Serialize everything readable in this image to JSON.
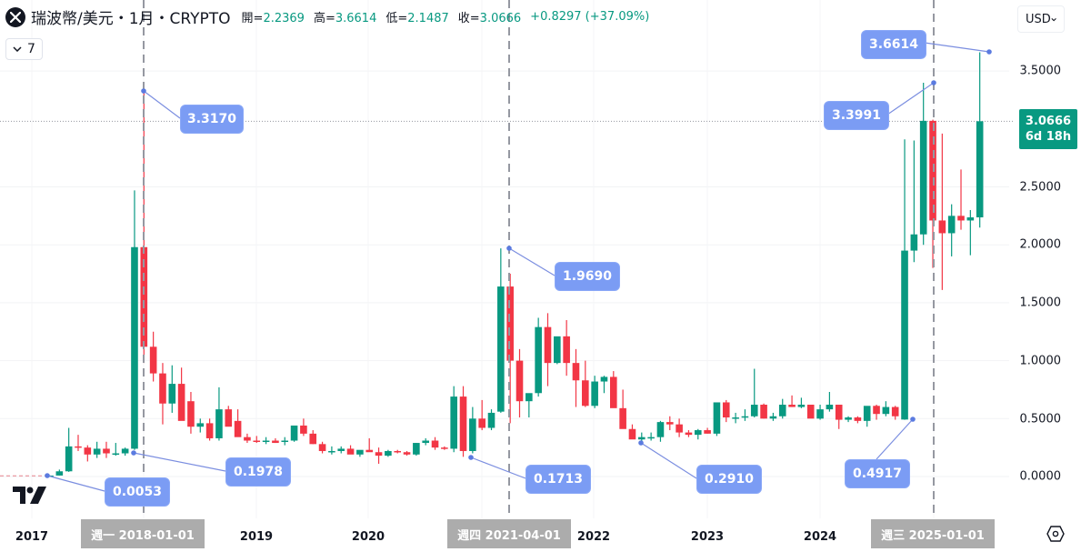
{
  "header": {
    "symbol_icon": "xrp-x-icon",
    "title": "瑞波幣/美元・1月・CRYPTO",
    "ohlc": [
      {
        "label": "開=",
        "value": "2.2369"
      },
      {
        "label": "高=",
        "value": "3.6614"
      },
      {
        "label": "低=",
        "value": "2.1487"
      },
      {
        "label": "收=",
        "value": "3.0666"
      },
      {
        "label": "",
        "value": "+0.8297 (+37.09%)"
      }
    ],
    "collapse_count": "7",
    "collapse_icon": "chevron-down-icon"
  },
  "currency": {
    "label": "USD",
    "icon": "chevron-down-icon"
  },
  "price_tag": {
    "price": "3.0666",
    "countdown": "6d 18h"
  },
  "colors": {
    "up": "#089981",
    "down": "#f23645",
    "callout": "#7b9cf4",
    "crosshair": "#9598a1"
  },
  "settings_icon": "settings-hexagon-icon",
  "chart_data": {
    "type": "candlestick",
    "title": "瑞波幣/美元・1月・CRYPTO",
    "interval": "1M",
    "ylabel": "USD",
    "ylim": [
      -0.1,
      3.6614
    ],
    "y_ticks": [
      "3.5000",
      "3.0000",
      "2.5000",
      "2.0000",
      "1.5000",
      "1.0000",
      "0.5000",
      "0.0000"
    ],
    "x_ticks": [
      "2017",
      "2018",
      "2019",
      "2020",
      "2021",
      "2022",
      "2023",
      "2024",
      "2025"
    ],
    "x_tags": [
      "週一 2018-01-01",
      "週四 2021-04-01",
      "週三 2025-01-01"
    ],
    "last": {
      "open": 2.2369,
      "high": 3.6614,
      "low": 2.1487,
      "close": 3.0666,
      "change": 0.8297,
      "change_pct": 37.09
    },
    "annotations": [
      {
        "label": "0.0053",
        "type": "low"
      },
      {
        "label": "3.3170",
        "type": "high"
      },
      {
        "label": "0.1978",
        "type": "low"
      },
      {
        "label": "1.9690",
        "type": "high"
      },
      {
        "label": "0.1713",
        "type": "low"
      },
      {
        "label": "0.2910",
        "type": "low"
      },
      {
        "label": "3.3991",
        "type": "high"
      },
      {
        "label": "0.4917",
        "type": "low"
      },
      {
        "label": "3.6614",
        "type": "high"
      }
    ],
    "candles": [
      [
        0.0063,
        0.009,
        0.0053,
        0.0085
      ],
      [
        0.0085,
        0.06,
        0.008,
        0.045
      ],
      [
        0.045,
        0.42,
        0.04,
        0.26
      ],
      [
        0.26,
        0.36,
        0.22,
        0.25
      ],
      [
        0.25,
        0.27,
        0.13,
        0.19
      ],
      [
        0.19,
        0.3,
        0.16,
        0.24
      ],
      [
        0.24,
        0.3,
        0.16,
        0.2
      ],
      [
        0.2,
        0.29,
        0.18,
        0.2
      ],
      [
        0.2,
        0.25,
        0.18,
        0.24
      ],
      [
        0.24,
        2.47,
        0.23,
        1.98
      ],
      [
        1.98,
        3.317,
        0.98,
        1.12
      ],
      [
        1.12,
        1.25,
        0.82,
        0.89
      ],
      [
        0.89,
        0.98,
        0.45,
        0.63
      ],
      [
        0.63,
        0.96,
        0.55,
        0.8
      ],
      [
        0.8,
        0.94,
        0.59,
        0.48
      ],
      [
        0.65,
        0.73,
        0.37,
        0.43
      ],
      [
        0.43,
        0.5,
        0.38,
        0.46
      ],
      [
        0.46,
        0.5,
        0.31,
        0.33
      ],
      [
        0.33,
        0.77,
        0.31,
        0.58
      ],
      [
        0.58,
        0.61,
        0.45,
        0.43
      ],
      [
        0.48,
        0.58,
        0.39,
        0.34
      ],
      [
        0.34,
        0.37,
        0.29,
        0.31
      ],
      [
        0.31,
        0.35,
        0.29,
        0.3
      ],
      [
        0.3,
        0.34,
        0.28,
        0.31
      ],
      [
        0.31,
        0.33,
        0.29,
        0.29
      ],
      [
        0.3,
        0.34,
        0.27,
        0.31
      ],
      [
        0.31,
        0.41,
        0.3,
        0.44
      ],
      [
        0.44,
        0.5,
        0.35,
        0.37
      ],
      [
        0.37,
        0.4,
        0.28,
        0.28
      ],
      [
        0.28,
        0.3,
        0.2,
        0.22
      ],
      [
        0.22,
        0.26,
        0.19,
        0.22
      ],
      [
        0.22,
        0.26,
        0.2,
        0.24
      ],
      [
        0.24,
        0.27,
        0.22,
        0.19
      ],
      [
        0.19,
        0.22,
        0.17,
        0.23
      ],
      [
        0.23,
        0.33,
        0.22,
        0.21
      ],
      [
        0.21,
        0.25,
        0.11,
        0.18
      ],
      [
        0.18,
        0.23,
        0.17,
        0.22
      ],
      [
        0.22,
        0.23,
        0.2,
        0.21
      ],
      [
        0.21,
        0.22,
        0.18,
        0.19
      ],
      [
        0.19,
        0.29,
        0.18,
        0.29
      ],
      [
        0.29,
        0.33,
        0.27,
        0.31
      ],
      [
        0.31,
        0.34,
        0.23,
        0.25
      ],
      [
        0.25,
        0.26,
        0.23,
        0.24
      ],
      [
        0.24,
        0.78,
        0.21,
        0.69
      ],
      [
        0.69,
        0.78,
        0.17,
        0.22
      ],
      [
        0.22,
        0.6,
        0.2,
        0.5
      ],
      [
        0.5,
        0.66,
        0.4,
        0.42
      ],
      [
        0.42,
        0.58,
        0.4,
        0.55
      ],
      [
        0.56,
        1.969,
        0.55,
        1.64
      ],
      [
        1.64,
        1.75,
        0.46,
        1.0
      ],
      [
        1.0,
        1.1,
        0.51,
        0.65
      ],
      [
        0.65,
        0.7,
        0.51,
        0.72
      ],
      [
        0.72,
        1.37,
        0.69,
        1.29
      ],
      [
        1.29,
        1.41,
        0.78,
        0.98
      ],
      [
        0.98,
        1.2,
        0.97,
        1.21
      ],
      [
        1.21,
        1.35,
        0.87,
        0.98
      ],
      [
        0.98,
        1.1,
        0.6,
        0.83
      ],
      [
        0.83,
        1.0,
        0.6,
        0.61
      ],
      [
        0.61,
        0.87,
        0.59,
        0.82
      ],
      [
        0.82,
        0.87,
        0.72,
        0.86
      ],
      [
        0.86,
        0.91,
        0.6,
        0.59
      ],
      [
        0.59,
        0.75,
        0.43,
        0.41
      ],
      [
        0.41,
        0.45,
        0.33,
        0.32
      ],
      [
        0.32,
        0.38,
        0.291,
        0.34
      ],
      [
        0.34,
        0.38,
        0.31,
        0.34
      ],
      [
        0.34,
        0.48,
        0.3,
        0.47
      ],
      [
        0.47,
        0.52,
        0.4,
        0.45
      ],
      [
        0.45,
        0.5,
        0.34,
        0.38
      ],
      [
        0.38,
        0.4,
        0.34,
        0.36
      ],
      [
        0.36,
        0.41,
        0.32,
        0.4
      ],
      [
        0.4,
        0.42,
        0.37,
        0.37
      ],
      [
        0.37,
        0.62,
        0.35,
        0.64
      ],
      [
        0.64,
        0.66,
        0.47,
        0.51
      ],
      [
        0.51,
        0.55,
        0.46,
        0.51
      ],
      [
        0.51,
        0.58,
        0.48,
        0.52
      ],
      [
        0.52,
        0.93,
        0.51,
        0.62
      ],
      [
        0.62,
        0.63,
        0.5,
        0.5
      ],
      [
        0.5,
        0.55,
        0.48,
        0.52
      ],
      [
        0.52,
        0.67,
        0.5,
        0.62
      ],
      [
        0.62,
        0.7,
        0.6,
        0.6
      ],
      [
        0.6,
        0.68,
        0.59,
        0.62
      ],
      [
        0.62,
        0.6,
        0.57,
        0.5
      ],
      [
        0.5,
        0.62,
        0.49,
        0.58
      ],
      [
        0.58,
        0.73,
        0.56,
        0.62
      ],
      [
        0.62,
        0.61,
        0.41,
        0.49
      ],
      [
        0.49,
        0.52,
        0.47,
        0.51
      ],
      [
        0.51,
        0.52,
        0.46,
        0.48
      ],
      [
        0.48,
        0.6,
        0.43,
        0.61
      ],
      [
        0.61,
        0.62,
        0.49,
        0.54
      ],
      [
        0.54,
        0.65,
        0.52,
        0.6
      ],
      [
        0.6,
        0.61,
        0.49,
        0.52
      ],
      [
        0.4917,
        2.91,
        0.49,
        1.95
      ],
      [
        1.95,
        2.9,
        1.85,
        2.09
      ],
      [
        2.09,
        3.3991,
        2.0,
        3.07
      ],
      [
        3.07,
        3.08,
        1.8,
        2.21
      ],
      [
        2.21,
        2.96,
        1.61,
        2.1
      ],
      [
        2.1,
        2.35,
        1.9,
        2.25
      ],
      [
        2.25,
        2.65,
        2.13,
        2.21
      ],
      [
        2.21,
        2.3,
        1.91,
        2.2369
      ],
      [
        2.2369,
        3.6614,
        2.1487,
        3.0666
      ]
    ]
  }
}
